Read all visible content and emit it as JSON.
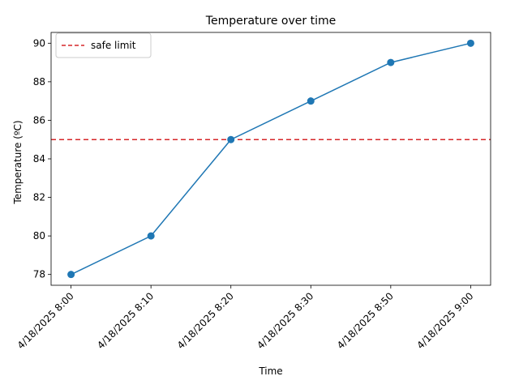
{
  "chart_data": {
    "type": "line",
    "title": "Temperature over time",
    "xlabel": "Time",
    "ylabel": "Temperature (ºC)",
    "categories": [
      "4/18/2025 8:00",
      "4/18/2025 8:10",
      "4/18/2025 8:20",
      "4/18/2025 8:30",
      "4/18/2025 8:50",
      "4/18/2025 9:00"
    ],
    "series": [
      {
        "values": [
          78,
          80,
          85,
          87,
          89,
          90
        ],
        "color": "#1f77b4",
        "marker": "circle"
      }
    ],
    "reference_line": {
      "name": "safe limit",
      "y": 85,
      "color": "#d62728",
      "style": "dashed"
    },
    "ylim": [
      77.44,
      90.56
    ],
    "yticks": [
      78,
      80,
      82,
      84,
      86,
      88,
      90
    ],
    "grid": false,
    "legend": {
      "position": "upper-left",
      "entries": [
        "safe limit"
      ]
    }
  }
}
